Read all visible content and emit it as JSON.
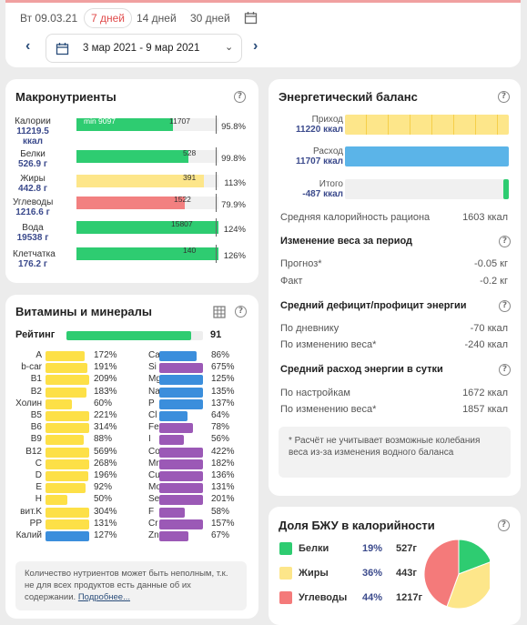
{
  "period": {
    "today": "Вт 09.03.21",
    "tabs": [
      "7 дней",
      "14 дней",
      "30 дней"
    ],
    "active_tab": "7 дней",
    "range": "3 мар 2021 - 9 мар 2021"
  },
  "macro": {
    "title": "Макронутриенты",
    "help": "?",
    "marker_min": "min 9097",
    "rows": [
      {
        "name": "Калории",
        "value": "11219.5 ккал",
        "pct": "95.8%",
        "norm": "11707",
        "fill": 0.68,
        "color": "#2ecc71"
      },
      {
        "name": "Белки",
        "value": "526.9 г",
        "pct": "99.8%",
        "norm": "528",
        "fill": 0.79,
        "color": "#2ecc71"
      },
      {
        "name": "Жиры",
        "value": "442.8 г",
        "pct": "113%",
        "norm": "391",
        "fill": 0.9,
        "color": "#fde68a"
      },
      {
        "name": "Углеводы",
        "value": "1216.6 г",
        "pct": "79.9%",
        "norm": "1522",
        "fill": 0.76,
        "color": "#f28080"
      },
      {
        "name": "Вода",
        "value": "19538 г",
        "pct": "124%",
        "norm": "15807",
        "fill": 1.0,
        "color": "#2ecc71"
      },
      {
        "name": "Клетчатка",
        "value": "176.2 г",
        "pct": "126%",
        "norm": "140",
        "fill": 1.0,
        "color": "#2ecc71"
      }
    ]
  },
  "vitamins": {
    "title": "Витамины и минералы",
    "rating_label": "Рейтинг",
    "rating": "91",
    "rating_fill": 0.91,
    "help": "?",
    "left": [
      {
        "n": "A",
        "p": "172%",
        "c": "#fde047",
        "f": 0.9
      },
      {
        "n": "b-car",
        "p": "191%",
        "c": "#fde047",
        "f": 0.95
      },
      {
        "n": "B1",
        "p": "209%",
        "c": "#fde047",
        "f": 1.0
      },
      {
        "n": "B2",
        "p": "183%",
        "c": "#fde047",
        "f": 0.93
      },
      {
        "n": "Холин",
        "p": "60%",
        "c": "#fde047",
        "f": 0.6
      },
      {
        "n": "B5",
        "p": "221%",
        "c": "#fde047",
        "f": 1.0
      },
      {
        "n": "B6",
        "p": "314%",
        "c": "#fde047",
        "f": 1.0
      },
      {
        "n": "B9",
        "p": "88%",
        "c": "#fde047",
        "f": 0.88
      },
      {
        "n": "B12",
        "p": "569%",
        "c": "#fde047",
        "f": 1.0
      },
      {
        "n": "C",
        "p": "268%",
        "c": "#fde047",
        "f": 1.0
      },
      {
        "n": "D",
        "p": "196%",
        "c": "#fde047",
        "f": 0.98
      },
      {
        "n": "E",
        "p": "92%",
        "c": "#fde047",
        "f": 0.92
      },
      {
        "n": "H",
        "p": "50%",
        "c": "#fde047",
        "f": 0.5
      },
      {
        "n": "вит.K",
        "p": "304%",
        "c": "#fde047",
        "f": 1.0
      },
      {
        "n": "PP",
        "p": "131%",
        "c": "#fde047",
        "f": 1.0
      },
      {
        "n": "Калий",
        "p": "127%",
        "c": "#3b8edc",
        "f": 1.0
      }
    ],
    "right": [
      {
        "n": "Ca",
        "p": "86%",
        "c": "#3b8edc",
        "f": 0.86
      },
      {
        "n": "Si",
        "p": "675%",
        "c": "#9b59b6",
        "f": 1.0
      },
      {
        "n": "Mg",
        "p": "125%",
        "c": "#3b8edc",
        "f": 1.0
      },
      {
        "n": "Na",
        "p": "135%",
        "c": "#3b8edc",
        "f": 1.0
      },
      {
        "n": "P",
        "p": "137%",
        "c": "#3b8edc",
        "f": 1.0
      },
      {
        "n": "Cl",
        "p": "64%",
        "c": "#3b8edc",
        "f": 0.64
      },
      {
        "n": "Fe",
        "p": "78%",
        "c": "#9b59b6",
        "f": 0.78
      },
      {
        "n": "I",
        "p": "56%",
        "c": "#9b59b6",
        "f": 0.56
      },
      {
        "n": "Co",
        "p": "422%",
        "c": "#9b59b6",
        "f": 1.0
      },
      {
        "n": "Mn",
        "p": "182%",
        "c": "#9b59b6",
        "f": 1.0
      },
      {
        "n": "Cu",
        "p": "136%",
        "c": "#9b59b6",
        "f": 1.0
      },
      {
        "n": "Mo",
        "p": "131%",
        "c": "#9b59b6",
        "f": 1.0
      },
      {
        "n": "Se",
        "p": "201%",
        "c": "#9b59b6",
        "f": 1.0
      },
      {
        "n": "F",
        "p": "58%",
        "c": "#9b59b6",
        "f": 0.58
      },
      {
        "n": "Cr",
        "p": "157%",
        "c": "#9b59b6",
        "f": 1.0
      },
      {
        "n": "Zn",
        "p": "67%",
        "c": "#9b59b6",
        "f": 0.67
      }
    ],
    "note": "Количество нутриентов может быть неполным, т.к. не для всех продуктов есть данные об их содержании.",
    "more": "Подробнее..."
  },
  "energy": {
    "title": "Энергетический баланс",
    "help": "?",
    "income_label": "Приход",
    "income": "11220 ккал",
    "expense_label": "Расход",
    "expense": "11707 ккал",
    "total_label": "Итого",
    "total": "-487 ккал",
    "avg_cal_label": "Средняя калорийность рациона",
    "avg_cal": "1603 ккал",
    "weight_title": "Изменение веса за период",
    "forecast_label": "Прогноз*",
    "forecast": "-0.05 кг",
    "fact_label": "Факт",
    "fact": "-0.2 кг",
    "deficit_title": "Средний дефицит/профицит энергии",
    "by_diary_label": "По дневнику",
    "by_diary": "-70 ккал",
    "by_weight_label": "По изменению веса*",
    "by_weight": "-240 ккал",
    "expense_title": "Средний расход энергии в сутки",
    "by_settings_label": "По настройкам",
    "by_settings": "1672 ккал",
    "by_weight2_label": "По изменению веса*",
    "by_weight2": "1857 ккал",
    "note": "* Расчёт не учитывает возможные колебания веса из-за изменения водного баланса"
  },
  "bju": {
    "title": "Доля БЖУ в калорийности",
    "help": "?",
    "rows": [
      {
        "name": "Белки",
        "pct": "19%",
        "g": "527г",
        "color": "#2ecc71"
      },
      {
        "name": "Жиры",
        "pct": "36%",
        "g": "443г",
        "color": "#fde68a"
      },
      {
        "name": "Углеводы",
        "pct": "44%",
        "g": "1217г",
        "color": "#f47a7a"
      }
    ]
  },
  "chart_data": {
    "type": "pie",
    "categories": [
      "Белки",
      "Жиры",
      "Углеводы"
    ],
    "values": [
      19,
      36,
      44
    ],
    "colors": [
      "#2ecc71",
      "#fde68a",
      "#f47a7a"
    ]
  }
}
